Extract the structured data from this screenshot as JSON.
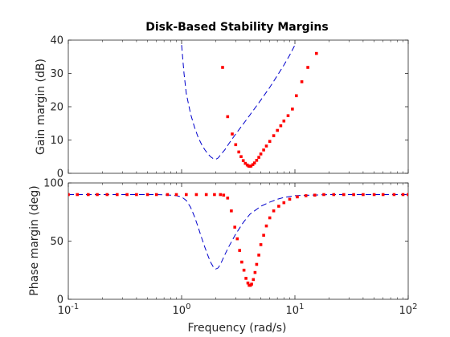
{
  "chart_data": [
    {
      "type": "line",
      "title": "Disk-Based Stability Margins",
      "xlabel": "",
      "ylabel": "Gain margin (dB)",
      "xscale": "log",
      "xlim": [
        0.1,
        100
      ],
      "ylim": [
        0,
        40
      ],
      "yticks": [
        0,
        10,
        20,
        30,
        40
      ],
      "ytick_labels": [
        "0",
        "10",
        "20",
        "30",
        "40"
      ],
      "grid": false,
      "series": [
        {
          "style": "dashed",
          "color": "#0000cc",
          "x": [
            1.0,
            1.05,
            1.1,
            1.2,
            1.3,
            1.4,
            1.5,
            1.6,
            1.7,
            1.8,
            1.9,
            2.0,
            2.1,
            2.2,
            2.4,
            2.6,
            3.0,
            3.5,
            4.0,
            5.0,
            6.0,
            7.0,
            8.0,
            9.0,
            10.0
          ],
          "y": [
            38.5,
            30.0,
            24.0,
            17.8,
            13.8,
            10.8,
            8.7,
            7.1,
            5.9,
            5.0,
            4.4,
            4.2,
            4.6,
            5.5,
            7.0,
            8.8,
            11.8,
            14.8,
            17.5,
            22.0,
            25.8,
            29.4,
            32.5,
            35.5,
            38.5
          ]
        },
        {
          "style": "dotted",
          "color": "#ff0000",
          "x": [
            2.3,
            2.55,
            2.8,
            3.0,
            3.2,
            3.35,
            3.5,
            3.65,
            3.8,
            3.9,
            4.0,
            4.1,
            4.25,
            4.4,
            4.6,
            4.8,
            5.0,
            5.3,
            5.6,
            6.0,
            6.5,
            7.0,
            7.5,
            8.0,
            8.7,
            9.5,
            10.3,
            11.5,
            13.0,
            15.5
          ],
          "y": [
            31.8,
            17.0,
            11.8,
            8.6,
            6.4,
            5.0,
            3.8,
            3.0,
            2.5,
            2.2,
            2.1,
            2.2,
            2.6,
            3.1,
            3.9,
            4.8,
            5.8,
            7.0,
            8.2,
            9.6,
            11.3,
            12.9,
            14.3,
            15.7,
            17.3,
            19.3,
            23.3,
            27.5,
            31.8,
            36.0
          ]
        }
      ]
    },
    {
      "type": "line",
      "title": "",
      "xlabel": "Frequency (rad/s)",
      "ylabel": "Phase margin (deg)",
      "xscale": "log",
      "xlim": [
        0.1,
        100
      ],
      "ylim": [
        0,
        100
      ],
      "xticks": [
        0.1,
        1,
        10,
        100
      ],
      "xtick_labels": [
        "10",
        "10",
        "10",
        "10"
      ],
      "xtick_exponents": [
        "-1",
        "0",
        "1",
        "2"
      ],
      "yticks": [
        0,
        50,
        100
      ],
      "ytick_labels": [
        "0",
        "50",
        "100"
      ],
      "grid": false,
      "series": [
        {
          "style": "dashed",
          "color": "#0000cc",
          "x": [
            0.1,
            0.3,
            0.6,
            0.8,
            0.9,
            1.0,
            1.1,
            1.2,
            1.3,
            1.4,
            1.5,
            1.6,
            1.7,
            1.8,
            1.9,
            2.0,
            2.1,
            2.2,
            2.4,
            2.6,
            3.0,
            3.5,
            4.0,
            5.0,
            6.0,
            7.0,
            8.0,
            10.0,
            20.0,
            50.0,
            100.0
          ],
          "y": [
            90,
            90,
            90,
            89.5,
            89,
            88,
            85,
            79,
            71,
            62,
            53,
            45,
            38,
            32,
            28,
            26,
            27,
            30,
            38,
            45,
            56,
            66,
            73,
            80,
            83.5,
            86,
            87.5,
            89,
            90,
            90,
            90
          ]
        },
        {
          "style": "dotted",
          "color": "#ff0000",
          "x": [
            0.1,
            0.12,
            0.15,
            0.18,
            0.22,
            0.27,
            0.33,
            0.4,
            0.5,
            0.6,
            0.75,
            0.9,
            1.1,
            1.35,
            1.65,
            1.95,
            2.2,
            2.35,
            2.55,
            2.75,
            2.95,
            3.1,
            3.25,
            3.4,
            3.55,
            3.7,
            3.85,
            3.95,
            4.05,
            4.15,
            4.3,
            4.45,
            4.6,
            4.8,
            5.0,
            5.3,
            5.6,
            6.0,
            6.5,
            7.2,
            8.0,
            9.0,
            10.5,
            12.5,
            15.0,
            18.0,
            22.0,
            27.0,
            33.0,
            40.0,
            50.0,
            60.0,
            75.0,
            90.0,
            100.0
          ],
          "y": [
            90,
            90,
            90,
            90,
            90,
            90,
            90,
            90,
            90,
            90,
            90,
            90,
            90,
            90,
            90,
            90,
            90,
            89.5,
            87,
            76,
            62,
            52,
            42,
            32,
            25,
            18,
            14,
            12,
            12,
            13,
            17,
            23,
            30,
            38,
            47,
            55,
            63,
            70,
            76,
            80,
            83,
            86,
            88,
            89,
            89.5,
            90,
            90,
            90,
            90,
            90,
            90,
            90,
            90,
            90,
            90
          ]
        }
      ]
    }
  ]
}
